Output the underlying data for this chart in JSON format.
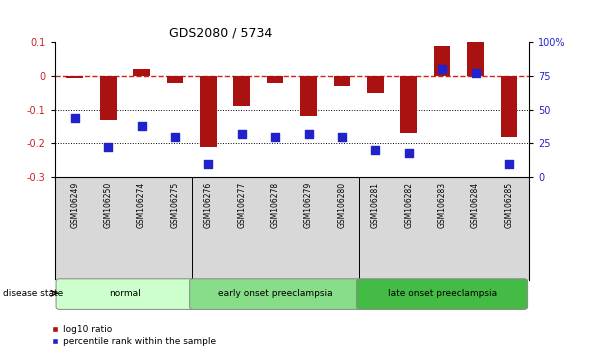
{
  "title": "GDS2080 / 5734",
  "samples": [
    "GSM106249",
    "GSM106250",
    "GSM106274",
    "GSM106275",
    "GSM106276",
    "GSM106277",
    "GSM106278",
    "GSM106279",
    "GSM106280",
    "GSM106281",
    "GSM106282",
    "GSM106283",
    "GSM106284",
    "GSM106285"
  ],
  "log10_ratio": [
    -0.005,
    -0.13,
    0.02,
    -0.02,
    -0.21,
    -0.09,
    -0.02,
    -0.12,
    -0.03,
    -0.05,
    -0.17,
    0.09,
    0.1,
    -0.18
  ],
  "percentile_rank": [
    44,
    22,
    38,
    30,
    10,
    32,
    30,
    32,
    30,
    20,
    18,
    80,
    77,
    10
  ],
  "groups": [
    {
      "label": "normal",
      "start": 0,
      "end": 4,
      "color": "#ccffcc"
    },
    {
      "label": "early onset preeclampsia",
      "start": 4,
      "end": 9,
      "color": "#88dd88"
    },
    {
      "label": "late onset preeclampsia",
      "start": 9,
      "end": 14,
      "color": "#44bb44"
    }
  ],
  "ylim_left": [
    -0.3,
    0.1
  ],
  "ylim_right": [
    0,
    100
  ],
  "bar_color": "#aa1111",
  "dot_color": "#2222cc",
  "zero_line_color": "#cc2222",
  "grid_line_color": "#000000",
  "bg_color": "#ffffff",
  "bar_width": 0.5,
  "dot_size": 30,
  "tick_label_color_left": "#cc2222",
  "tick_label_color_right": "#2222cc"
}
